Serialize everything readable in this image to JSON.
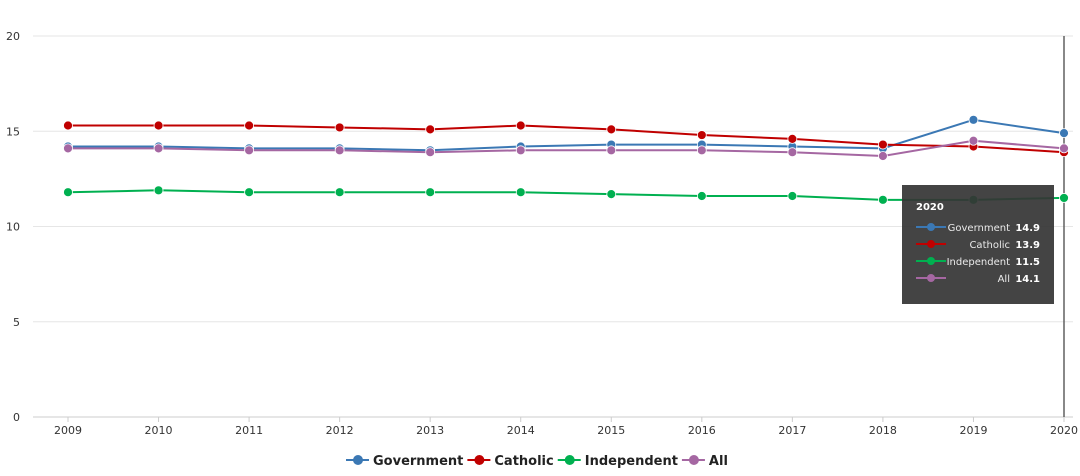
{
  "chart_data": {
    "type": "line",
    "title": "",
    "xlabel": "",
    "ylabel": "",
    "x": [
      "2009",
      "2010",
      "2011",
      "2012",
      "2013",
      "2014",
      "2015",
      "2016",
      "2017",
      "2018",
      "2019",
      "2020"
    ],
    "ylim": [
      0,
      20
    ],
    "yticks": [
      "0",
      "5",
      "10",
      "15",
      "20"
    ],
    "grid": true,
    "legend_position": "bottom-center",
    "series": [
      {
        "name": "Government",
        "color": "#3b78b4",
        "values": [
          14.2,
          14.2,
          14.1,
          14.1,
          14.0,
          14.2,
          14.3,
          14.3,
          14.2,
          14.1,
          15.6,
          14.9
        ]
      },
      {
        "name": "Catholic",
        "color": "#c00000",
        "values": [
          15.3,
          15.3,
          15.3,
          15.2,
          15.1,
          15.3,
          15.1,
          14.8,
          14.6,
          14.3,
          14.2,
          13.9
        ]
      },
      {
        "name": "Independent",
        "color": "#00b050",
        "values": [
          11.8,
          11.9,
          11.8,
          11.8,
          11.8,
          11.8,
          11.7,
          11.6,
          11.6,
          11.4,
          11.4,
          11.5
        ]
      },
      {
        "name": "All",
        "color": "#a567a2",
        "values": [
          14.1,
          14.1,
          14.0,
          14.0,
          13.9,
          14.0,
          14.0,
          14.0,
          13.9,
          13.7,
          14.5,
          14.1
        ]
      }
    ],
    "tooltip": {
      "title": "2020",
      "rows": [
        {
          "name": "Government",
          "value": "14.9"
        },
        {
          "name": "Catholic",
          "value": "13.9"
        },
        {
          "name": "Independent",
          "value": "11.5"
        },
        {
          "name": "All",
          "value": "14.1"
        }
      ]
    }
  }
}
